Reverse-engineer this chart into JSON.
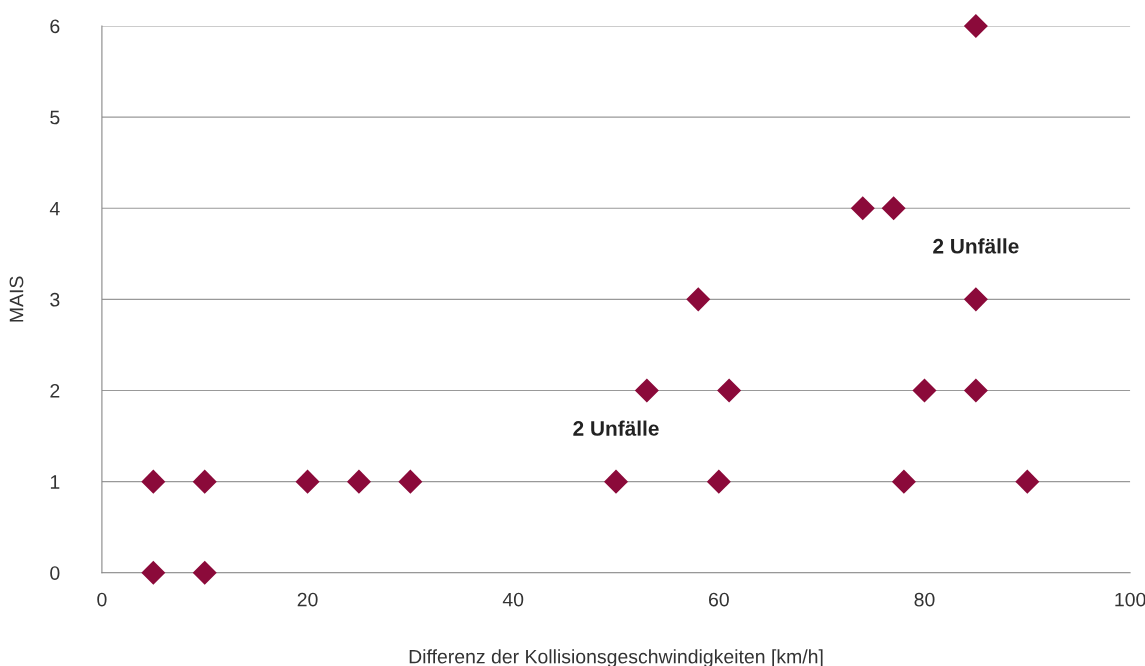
{
  "chart_data": {
    "type": "scatter",
    "xlabel": "Differenz der Kollisionsgeschwindigkeiten [km/h]",
    "ylabel": "MAIS",
    "x": [
      5,
      10,
      5,
      10,
      20,
      25,
      30,
      50,
      60,
      78,
      90,
      53,
      61,
      80,
      85,
      58,
      85,
      74,
      77,
      85
    ],
    "series": [
      {
        "color": "#8b0a3a",
        "values": [
          0,
          0,
          1,
          1,
          1,
          1,
          1,
          1,
          1,
          1,
          1,
          2,
          2,
          2,
          2,
          3,
          3,
          4,
          4,
          6
        ]
      }
    ],
    "marker": "diamond",
    "xlim": [
      0,
      100
    ],
    "xticks": [
      0,
      20,
      40,
      60,
      80,
      100
    ],
    "ylim": [
      0,
      6
    ],
    "yticks": [
      0,
      1,
      2,
      3,
      4,
      5,
      6
    ],
    "grid": "y",
    "annotations": [
      {
        "text": "2 Unfälle",
        "x": 50,
        "y": 1
      },
      {
        "text": "2 Unfälle",
        "x": 85,
        "y": 3
      }
    ]
  }
}
